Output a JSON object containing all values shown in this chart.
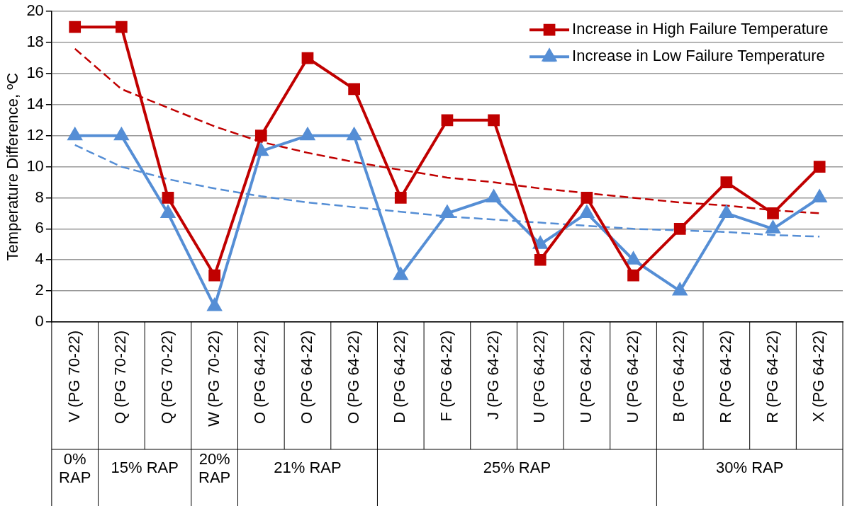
{
  "chart_data": {
    "type": "line",
    "ylabel": "Temperature Difference, ºC",
    "categories": [
      "V (PG 70-22)",
      "Q (PG 70-22)",
      "Q (PG 70-22)",
      "W (PG 70-22)",
      "O (PG 64-22)",
      "O (PG 64-22)",
      "O (PG 64-22)",
      "D (PG 64-22)",
      "F (PG 64-22)",
      "J (PG 64-22)",
      "U (PG 64-22)",
      "U (PG 64-22)",
      "U (PG 64-22)",
      "B (PG 64-22)",
      "R (PG 64-22)",
      "R (PG 64-22)",
      "X (PG 64-22)"
    ],
    "series": [
      {
        "name": "Increase in High Failure Temperature",
        "color": "#c00000",
        "marker": "square",
        "line_style": "solid",
        "values": [
          19,
          19,
          8,
          3,
          12,
          17,
          15,
          8,
          13,
          13,
          4,
          8,
          3,
          6,
          9,
          7,
          10
        ]
      },
      {
        "name": "Increase in Low Failure Temperature",
        "color": "#558ed5",
        "marker": "triangle",
        "line_style": "solid",
        "values": [
          12,
          12,
          7,
          1,
          11,
          12,
          12,
          3,
          7,
          8,
          5,
          7,
          4,
          2,
          7,
          6,
          8
        ]
      },
      {
        "color": "#c00000",
        "marker": "none",
        "line_style": "dashed",
        "values": [
          17.6,
          15,
          13.8,
          12.6,
          11.6,
          10.9,
          10.3,
          9.8,
          9.3,
          9.0,
          8.6,
          8.3,
          8.0,
          7.7,
          7.5,
          7.2,
          7.0
        ]
      },
      {
        "color": "#558ed5",
        "marker": "none",
        "line_style": "dashed",
        "values": [
          11.4,
          10.0,
          9.2,
          8.6,
          8.1,
          7.7,
          7.4,
          7.1,
          6.8,
          6.6,
          6.4,
          6.2,
          6.0,
          5.9,
          5.8,
          5.6,
          5.5
        ]
      }
    ],
    "ylim": [
      0,
      20
    ],
    "yticks": [
      0,
      2,
      4,
      6,
      8,
      10,
      12,
      14,
      16,
      18,
      20
    ],
    "grid": "y",
    "legend": "top right",
    "annotations": [
      "0% RAP",
      "15% RAP",
      "20% RAP",
      "21% RAP",
      "25% RAP",
      "30% RAP"
    ]
  }
}
